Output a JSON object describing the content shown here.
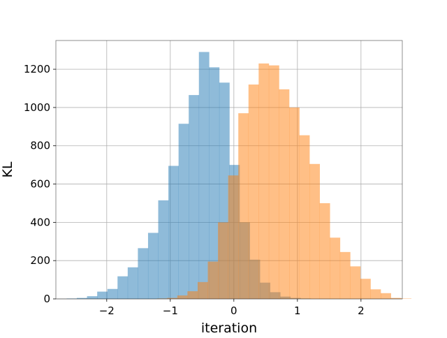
{
  "chart_data": {
    "type": "bar",
    "subtype": "histogram",
    "title": "",
    "xlabel": "iteration",
    "ylabel": "KL",
    "xlim": [
      -2.8,
      2.65
    ],
    "ylim": [
      0,
      1350
    ],
    "xticks": [
      -2,
      -1,
      0,
      1,
      2
    ],
    "xtick_labels": [
      "−2",
      "−1",
      "0",
      "1",
      "2"
    ],
    "yticks": [
      0,
      200,
      400,
      600,
      800,
      1000,
      1200
    ],
    "ytick_labels": [
      "0",
      "200",
      "400",
      "600",
      "800",
      "1000",
      "1200"
    ],
    "grid": true,
    "legend": "none",
    "bin_width": 0.16,
    "series": [
      {
        "color": "#1f77b4",
        "opacity": 0.5,
        "bin_start": -2.63,
        "values": [
          2,
          5,
          14,
          38,
          52,
          118,
          165,
          265,
          345,
          515,
          695,
          915,
          1065,
          1290,
          1210,
          1130,
          700,
          400,
          205,
          85,
          35,
          12,
          5,
          2
        ]
      },
      {
        "color": "#ff7f0e",
        "opacity": 0.5,
        "bin_start": -1.21,
        "values": [
          2,
          5,
          18,
          40,
          88,
          195,
          400,
          645,
          970,
          1120,
          1230,
          1220,
          1095,
          1000,
          855,
          705,
          500,
          320,
          245,
          170,
          105,
          50,
          30,
          5,
          2
        ]
      }
    ]
  }
}
